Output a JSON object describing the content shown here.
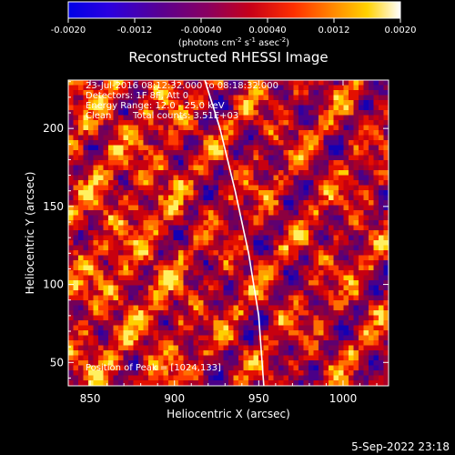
{
  "colorbar": {
    "ticks": [
      "-0.0020",
      "-0.0012",
      "-0.00040",
      "0.00040",
      "0.0012",
      "0.0020"
    ],
    "units_label": "(photons cm",
    "units_sup1": "-2",
    "units_mid": " s",
    "units_sup2": "-1",
    "units_mid2": " asec",
    "units_sup3": "-2",
    "units_end": ")"
  },
  "chart_data": {
    "type": "heatmap",
    "title": "Reconstructed RHESSI Image",
    "xlabel": "Heliocentric X (arcsec)",
    "ylabel": "Heliocentric Y (arcsec)",
    "xlim": [
      837,
      1027
    ],
    "ylim": [
      35,
      231
    ],
    "x_ticks": [
      850,
      900,
      950,
      1000
    ],
    "y_ticks": [
      50,
      100,
      150,
      200
    ],
    "color_range": [
      -0.002,
      0.002
    ],
    "colormap": "rainbow-to-hot (blue, purple, red, orange, yellow, white)",
    "annotations": [
      "23-Jul-2016 08:12:32.000 to 08:18:32.000",
      "Detectors: 1F 8F, Att 0",
      "Energy Range: 12.0 - 25.0 keV",
      "Clean",
      "Total counts: 3.51E+03"
    ],
    "peak_label": "Position of Peak = [1024,133]",
    "limb_curve": [
      [
        918,
        231
      ],
      [
        927,
        200
      ],
      [
        936,
        160
      ],
      [
        944,
        120
      ],
      [
        950,
        80
      ],
      [
        953,
        35
      ]
    ]
  },
  "footer": {
    "timestamp": "5-Sep-2022 23:18"
  }
}
